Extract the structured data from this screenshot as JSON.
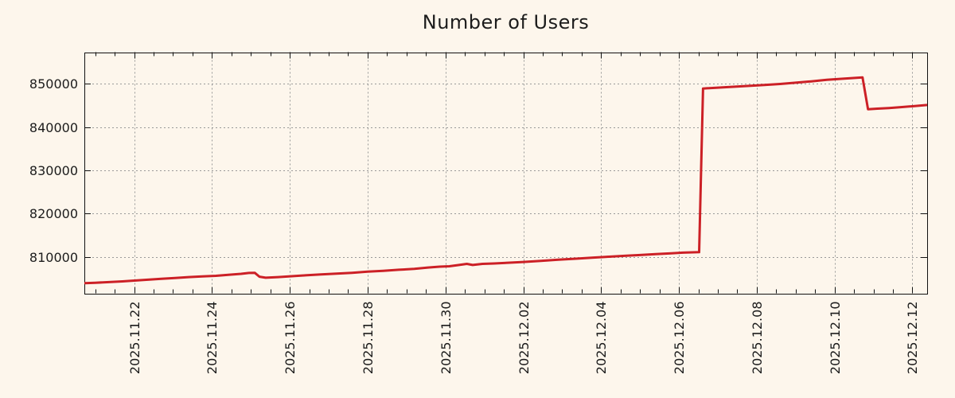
{
  "title": "Number of Users",
  "colors": {
    "background": "#fdf6ec",
    "series_line": "#cc2026",
    "grid": "#999999",
    "axis": "#111111",
    "text": "#1c1c1c"
  },
  "chart_data": {
    "type": "line",
    "title": "Number of Users",
    "xlabel": "",
    "ylabel": "",
    "legend": "none",
    "grid": true,
    "x_unit": "days since 2025-11-20 00:00",
    "xlim": [
      0.72,
      22.38
    ],
    "ylim": [
      801600,
      857300
    ],
    "x_minor_step": 0.5,
    "x_major_ticks": [
      {
        "x": 2,
        "label": "2025.11.22"
      },
      {
        "x": 4,
        "label": "2025.11.24"
      },
      {
        "x": 6,
        "label": "2025.11.26"
      },
      {
        "x": 8,
        "label": "2025.11.28"
      },
      {
        "x": 10,
        "label": "2025.11.30"
      },
      {
        "x": 12,
        "label": "2025.12.02"
      },
      {
        "x": 14,
        "label": "2025.12.04"
      },
      {
        "x": 16,
        "label": "2025.12.06"
      },
      {
        "x": 18,
        "label": "2025.12.08"
      },
      {
        "x": 20,
        "label": "2025.12.10"
      },
      {
        "x": 22,
        "label": "2025.12.12"
      }
    ],
    "y_major_ticks": [
      {
        "y": 810000,
        "label": "810000"
      },
      {
        "y": 820000,
        "label": "820000"
      },
      {
        "y": 830000,
        "label": "830000"
      },
      {
        "y": 840000,
        "label": "840000"
      },
      {
        "y": 850000,
        "label": "850000"
      }
    ],
    "series": [
      {
        "name": "Number of Users",
        "color": "#cc2026",
        "points": [
          [
            0.72,
            803950
          ],
          [
            1.0,
            804050
          ],
          [
            1.35,
            804200
          ],
          [
            1.7,
            804350
          ],
          [
            2.0,
            804550
          ],
          [
            2.35,
            804750
          ],
          [
            2.7,
            804950
          ],
          [
            3.05,
            805150
          ],
          [
            3.4,
            805350
          ],
          [
            3.75,
            805500
          ],
          [
            4.1,
            805650
          ],
          [
            4.45,
            805900
          ],
          [
            4.75,
            806100
          ],
          [
            4.95,
            806300
          ],
          [
            5.1,
            806350
          ],
          [
            5.22,
            805450
          ],
          [
            5.38,
            805200
          ],
          [
            5.7,
            805350
          ],
          [
            6.05,
            805550
          ],
          [
            6.4,
            805750
          ],
          [
            6.8,
            805950
          ],
          [
            7.2,
            806150
          ],
          [
            7.6,
            806350
          ],
          [
            8.0,
            806600
          ],
          [
            8.4,
            806800
          ],
          [
            8.8,
            807050
          ],
          [
            9.2,
            807250
          ],
          [
            9.55,
            807550
          ],
          [
            9.85,
            807750
          ],
          [
            10.1,
            807850
          ],
          [
            10.35,
            808150
          ],
          [
            10.55,
            808400
          ],
          [
            10.7,
            808150
          ],
          [
            10.95,
            808400
          ],
          [
            11.25,
            808500
          ],
          [
            11.6,
            808650
          ],
          [
            12.0,
            808850
          ],
          [
            12.45,
            809100
          ],
          [
            12.9,
            809350
          ],
          [
            13.35,
            809600
          ],
          [
            13.8,
            809850
          ],
          [
            14.2,
            810050
          ],
          [
            14.6,
            810250
          ],
          [
            15.0,
            810450
          ],
          [
            15.4,
            810650
          ],
          [
            15.8,
            810850
          ],
          [
            16.1,
            811000
          ],
          [
            16.52,
            811100
          ],
          [
            16.62,
            848900
          ],
          [
            17.0,
            849100
          ],
          [
            17.4,
            849300
          ],
          [
            17.8,
            849500
          ],
          [
            18.2,
            849700
          ],
          [
            18.6,
            849950
          ],
          [
            19.0,
            850250
          ],
          [
            19.4,
            850550
          ],
          [
            19.8,
            850900
          ],
          [
            20.1,
            851100
          ],
          [
            20.45,
            851300
          ],
          [
            20.72,
            851450
          ],
          [
            20.86,
            844100
          ],
          [
            21.1,
            844250
          ],
          [
            21.4,
            844400
          ],
          [
            21.7,
            844600
          ],
          [
            22.0,
            844800
          ],
          [
            22.38,
            845100
          ]
        ]
      }
    ]
  }
}
